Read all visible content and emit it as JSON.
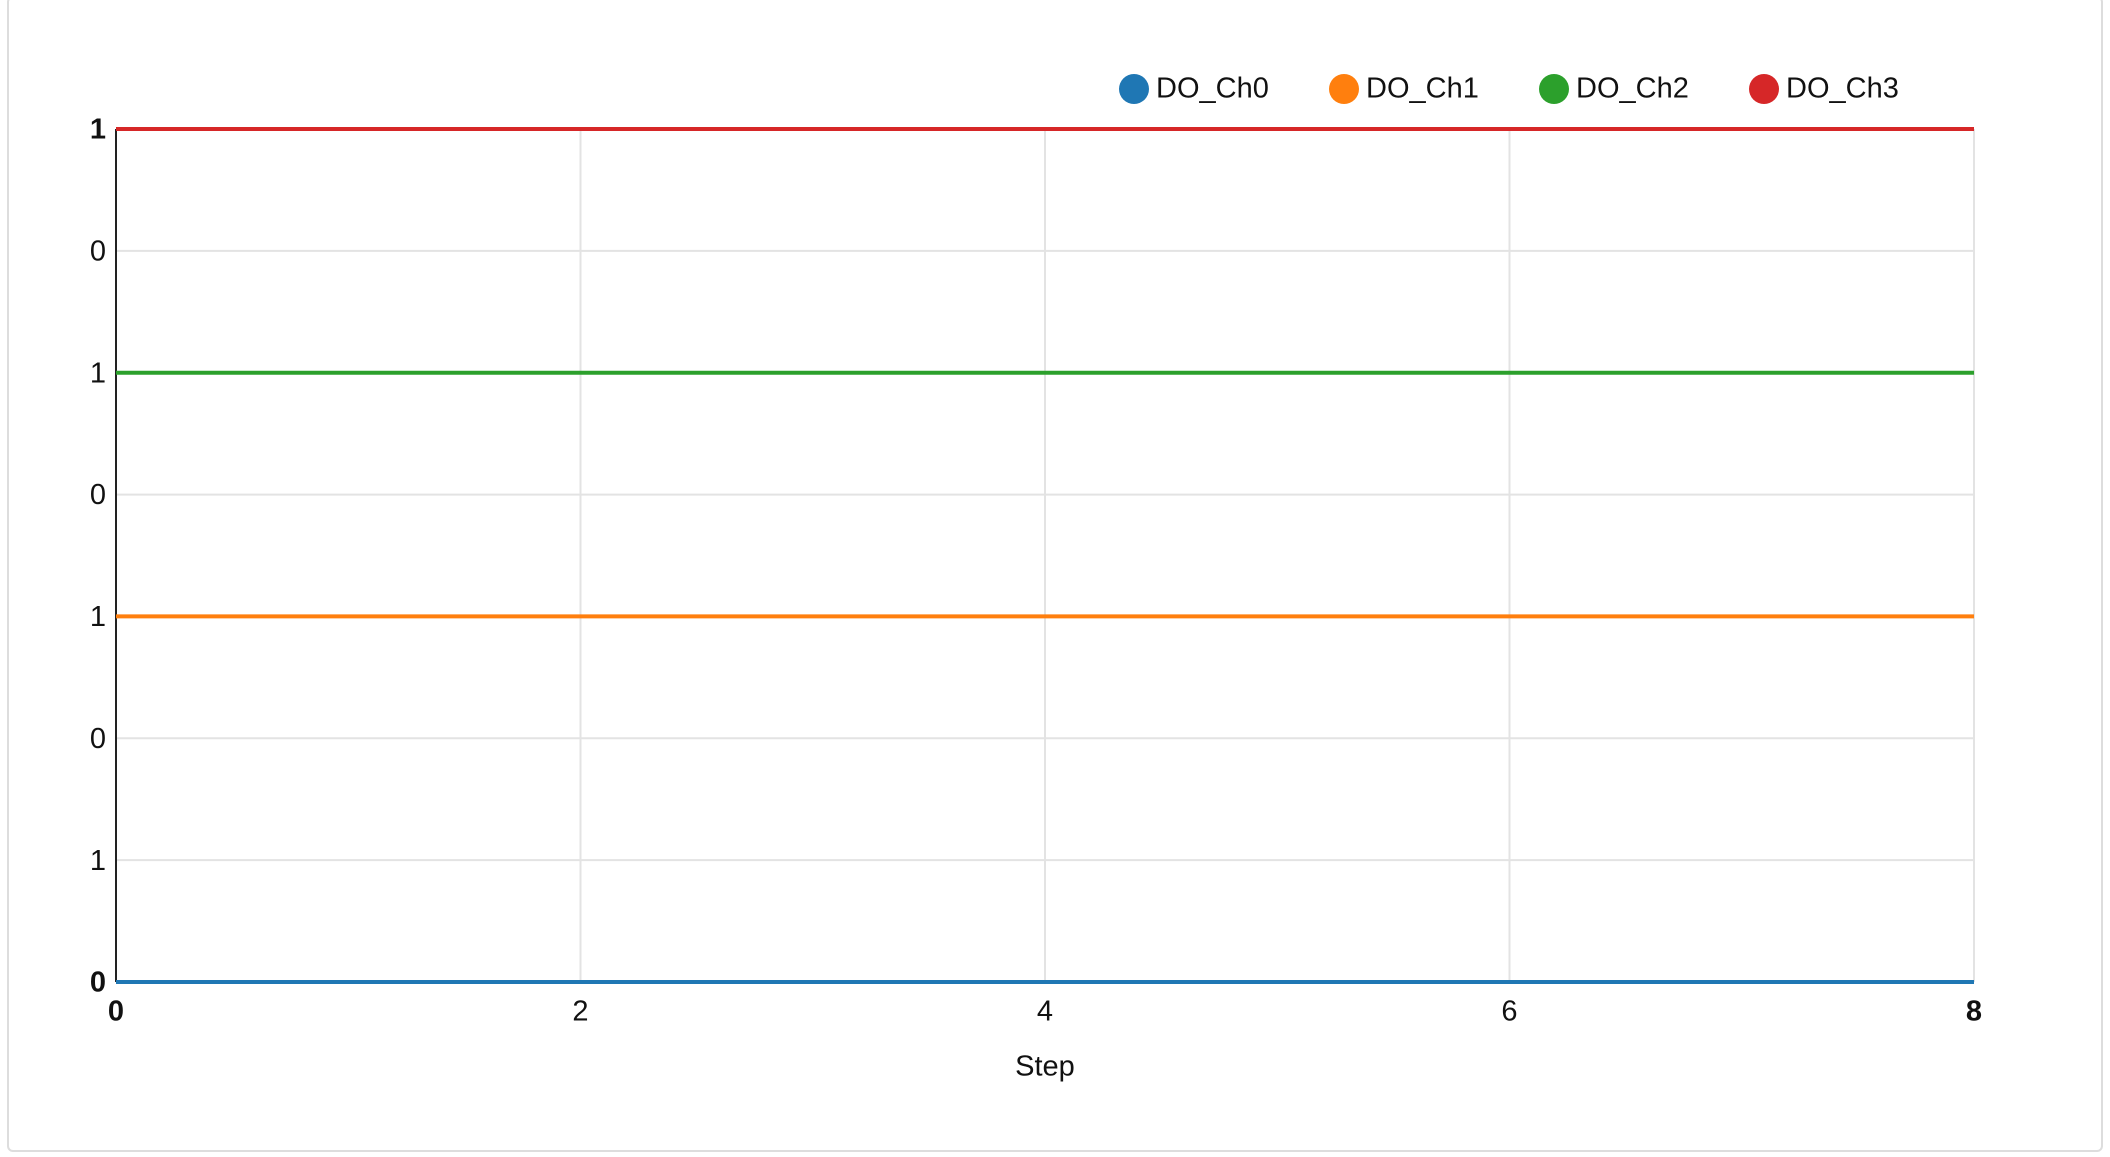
{
  "chart_data": {
    "type": "line",
    "x_label": "Step",
    "x": [
      0,
      1,
      2,
      3,
      4,
      5,
      6,
      7,
      8
    ],
    "series": [
      {
        "name": "DO_Ch0",
        "color": "#1f77b4",
        "values": [
          0,
          0,
          0,
          0,
          0,
          0,
          0,
          0,
          0
        ]
      },
      {
        "name": "DO_Ch1",
        "color": "#ff7f0e",
        "values": [
          3,
          3,
          3,
          3,
          3,
          3,
          3,
          3,
          3
        ]
      },
      {
        "name": "DO_Ch2",
        "color": "#2ca02c",
        "values": [
          5,
          5,
          5,
          5,
          5,
          5,
          5,
          5,
          5
        ]
      },
      {
        "name": "DO_Ch3",
        "color": "#d62728",
        "values": [
          7,
          7,
          7,
          7,
          7,
          7,
          7,
          7,
          7
        ]
      }
    ],
    "xlim": [
      0,
      8
    ],
    "xticks": [
      0,
      2,
      4,
      6,
      8
    ],
    "ylim": [
      0,
      7
    ],
    "yticks": [
      {
        "value": 0,
        "label": "0"
      },
      {
        "value": 1,
        "label": "1"
      },
      {
        "value": 2,
        "label": "0"
      },
      {
        "value": 3,
        "label": "1"
      },
      {
        "value": 4,
        "label": "0"
      },
      {
        "value": 5,
        "label": "1"
      },
      {
        "value": 6,
        "label": "0"
      },
      {
        "value": 7,
        "label": "1"
      }
    ],
    "grid": true,
    "legend": "top-right"
  }
}
